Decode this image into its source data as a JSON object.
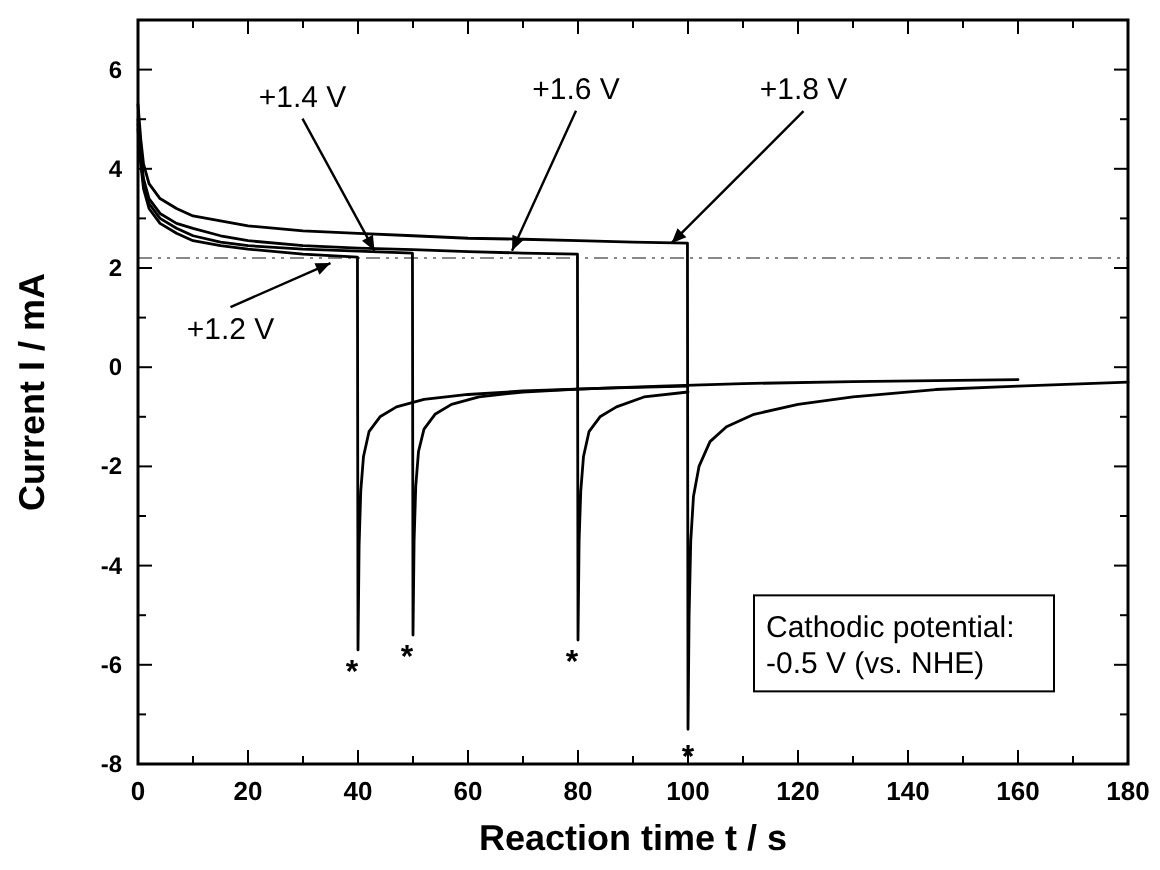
{
  "chart_data": {
    "type": "line",
    "xlabel": "Reaction time t / s",
    "ylabel": "Current I / mA",
    "xlim": [
      0,
      180
    ],
    "ylim": [
      -8,
      7
    ],
    "xticks": [
      0,
      {
        "value": 10,
        "label": null
      },
      20,
      {
        "value": 30,
        "label": null
      },
      40,
      {
        "value": 50,
        "label": null
      },
      60,
      {
        "value": 70,
        "label": null
      },
      80,
      {
        "value": 90,
        "label": null
      },
      100,
      {
        "value": 110,
        "label": null
      },
      120,
      {
        "value": 130,
        "label": null
      },
      140,
      {
        "value": 150,
        "label": null
      },
      160,
      {
        "value": 170,
        "label": null
      },
      180
    ],
    "yticks": [
      -8,
      {
        "value": -7,
        "label": null
      },
      -6,
      {
        "value": -5,
        "label": null
      },
      -4,
      {
        "value": -3,
        "label": null
      },
      -2,
      {
        "value": -1,
        "label": null
      },
      0,
      {
        "value": 1,
        "label": null
      },
      2,
      {
        "value": 3,
        "label": null
      },
      4,
      {
        "value": 5,
        "label": null
      },
      6
    ],
    "series": [
      {
        "color": "#000000",
        "x": [
          0,
          0.5,
          1,
          2,
          4,
          7,
          10,
          15,
          20,
          30,
          39.9,
          40,
          40.2,
          40.5,
          41,
          42,
          44,
          47,
          52,
          60,
          70,
          85,
          100
        ],
        "values": [
          4.8,
          4.1,
          3.6,
          3.2,
          2.9,
          2.7,
          2.55,
          2.45,
          2.38,
          2.28,
          2.22,
          -5.7,
          -3.6,
          -2.5,
          -1.8,
          -1.3,
          -1.0,
          -0.8,
          -0.65,
          -0.55,
          -0.48,
          -0.42,
          -0.38
        ]
      },
      {
        "color": "#000000",
        "x": [
          0,
          0.5,
          1,
          2,
          4,
          7,
          10,
          15,
          20,
          30,
          40,
          49.9,
          50,
          50.2,
          50.5,
          51,
          52,
          54,
          57,
          62,
          70,
          80,
          95,
          110,
          130,
          160
        ],
        "values": [
          4.9,
          4.2,
          3.7,
          3.3,
          3.0,
          2.8,
          2.65,
          2.52,
          2.45,
          2.38,
          2.34,
          2.3,
          -5.4,
          -3.5,
          -2.4,
          -1.7,
          -1.25,
          -0.95,
          -0.75,
          -0.6,
          -0.5,
          -0.44,
          -0.38,
          -0.33,
          -0.29,
          -0.25
        ]
      },
      {
        "color": "#000000",
        "x": [
          0,
          0.5,
          1,
          2,
          4,
          7,
          10,
          15,
          20,
          30,
          40,
          50,
          60,
          70,
          79.9,
          80,
          80.2,
          80.5,
          81,
          82,
          84,
          87,
          92,
          100
        ],
        "values": [
          5.0,
          4.3,
          3.8,
          3.4,
          3.1,
          2.9,
          2.8,
          2.65,
          2.55,
          2.45,
          2.4,
          2.37,
          2.33,
          2.3,
          2.28,
          -5.5,
          -3.5,
          -2.5,
          -1.8,
          -1.3,
          -1.0,
          -0.8,
          -0.6,
          -0.5
        ]
      },
      {
        "color": "#000000",
        "x": [
          0,
          0.5,
          1,
          2,
          4,
          7,
          10,
          15,
          20,
          30,
          40,
          50,
          60,
          70,
          80,
          90,
          99.9,
          100,
          100.2,
          100.5,
          101,
          102,
          104,
          107,
          112,
          120,
          130,
          145,
          160,
          180
        ],
        "values": [
          5.3,
          4.6,
          4.1,
          3.7,
          3.4,
          3.2,
          3.05,
          2.95,
          2.85,
          2.75,
          2.7,
          2.65,
          2.6,
          2.58,
          2.55,
          2.52,
          2.5,
          -7.3,
          -5,
          -3.5,
          -2.6,
          -2,
          -1.5,
          -1.2,
          -0.95,
          -0.75,
          -0.6,
          -0.45,
          -0.38,
          -0.3
        ]
      }
    ],
    "ref_lines": [
      {
        "axis": "y",
        "value": 2.2,
        "color": "#888888",
        "line_style": "dashed"
      }
    ],
    "annotations": [
      {
        "text": "+1.2 V",
        "x": 35,
        "y": 2.1
      },
      {
        "text": "+1.4 V",
        "x": 43,
        "y": 2.35
      },
      {
        "text": "+1.6 V",
        "x": 68,
        "y": 2.35
      },
      {
        "text": "+1.8 V",
        "x": 97,
        "y": 2.5
      },
      {
        "text": "*",
        "x": 40,
        "y": -5.7
      },
      {
        "text": "*",
        "x": 50,
        "y": -5.4
      },
      {
        "text": "*",
        "x": 80,
        "y": -5.5
      },
      {
        "text": "*",
        "x": 100,
        "y": -7.3
      },
      "Cathodic potential:\n-0.5 V (vs. NHE)"
    ],
    "line_style": "solid",
    "marker": "none",
    "grid": false
  }
}
